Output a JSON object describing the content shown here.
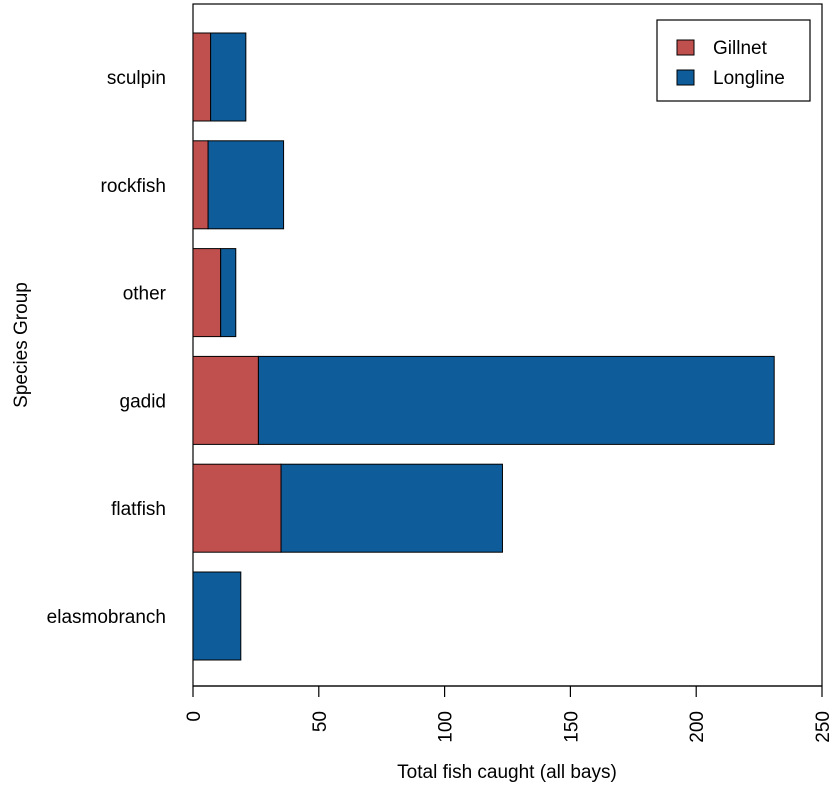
{
  "chart_data": {
    "type": "bar",
    "orientation": "horizontal",
    "stacked": true,
    "categories": [
      "elasmobranch",
      "flatfish",
      "gadid",
      "other",
      "rockfish",
      "sculpin"
    ],
    "series": [
      {
        "name": "Gillnet",
        "color": "#c0504d",
        "values": [
          0,
          35,
          26,
          11,
          6,
          7
        ]
      },
      {
        "name": "Longline",
        "color": "#0f5c9a",
        "values": [
          19,
          88,
          205,
          6,
          30,
          14
        ]
      }
    ],
    "xlabel": "Total fish caught (all bays)",
    "ylabel": "Species Group",
    "xlim": [
      0,
      250
    ],
    "xticks": [
      "0",
      "50",
      "100",
      "150",
      "200",
      "250"
    ],
    "legend_position": "top-right",
    "grid": false
  }
}
